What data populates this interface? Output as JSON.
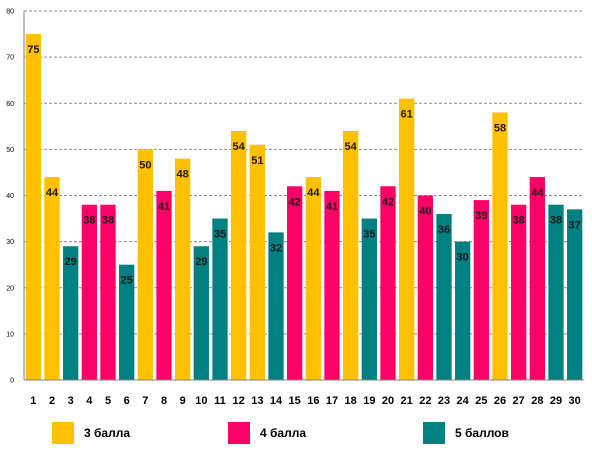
{
  "colors": {
    "3 балла": "#FFC000",
    "4 балла": "#FF0066",
    "5 баллов": "#008080"
  },
  "chart_data": {
    "type": "bar",
    "categories": [
      "1",
      "2",
      "3",
      "4",
      "5",
      "6",
      "7",
      "8",
      "9",
      "10",
      "11",
      "12",
      "13",
      "14",
      "15",
      "16",
      "17",
      "18",
      "19",
      "20",
      "21",
      "22",
      "23",
      "24",
      "25",
      "26",
      "27",
      "28",
      "29",
      "30"
    ],
    "values": [
      75,
      44,
      29,
      38,
      38,
      25,
      50,
      41,
      48,
      29,
      35,
      54,
      51,
      32,
      42,
      44,
      41,
      54,
      35,
      42,
      61,
      40,
      36,
      30,
      39,
      58,
      38,
      44,
      38,
      37
    ],
    "groups": [
      "3 балла",
      "3 балла",
      "5 баллов",
      "4 балла",
      "4 балла",
      "5 баллов",
      "3 балла",
      "4 балла",
      "3 балла",
      "5 баллов",
      "5 баллов",
      "3 балла",
      "3 балла",
      "5 баллов",
      "4 балла",
      "3 балла",
      "4 балла",
      "3 балла",
      "5 баллов",
      "4 балла",
      "3 балла",
      "4 балла",
      "5 баллов",
      "5 баллов",
      "4 балла",
      "3 балла",
      "4 балла",
      "4 балла",
      "5 баллов",
      "5 баллов"
    ],
    "legend": [
      "3 балла",
      "4 балла",
      "5 баллов"
    ],
    "title": "",
    "xlabel": "",
    "ylabel": "",
    "ylim": [
      0,
      80
    ],
    "yticks": [
      0,
      10,
      20,
      30,
      40,
      50,
      60,
      70,
      80
    ],
    "grid": true,
    "legend_position": "bottom"
  }
}
